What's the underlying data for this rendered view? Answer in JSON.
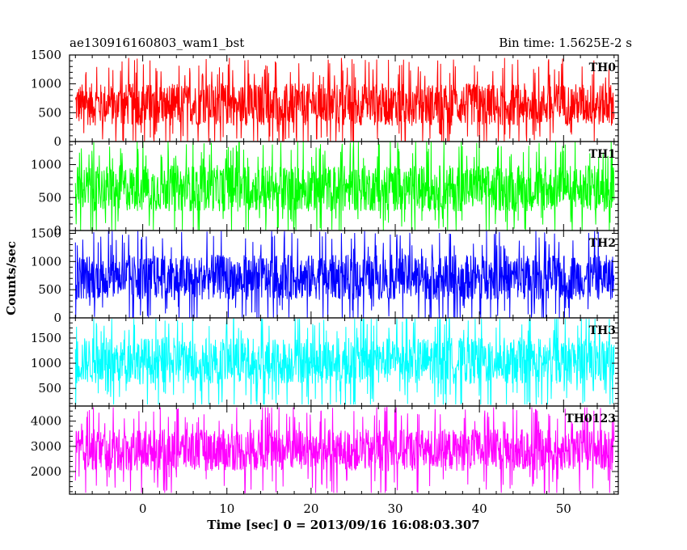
{
  "header": {
    "title": "ae130916160803_wam1_bst",
    "bin_time": "Bin time: 1.5625E-2 s"
  },
  "axes": {
    "xlabel": "Time [sec] 0 = 2013/09/16 16:08:03.307",
    "ylabel": "Counts/sec"
  },
  "chart_data": [
    {
      "type": "line",
      "name": "TH0",
      "color": "#ff0000",
      "xlim": [
        -8.7,
        56.5
      ],
      "ylim": [
        0,
        1500
      ],
      "yticks": [
        0,
        500,
        1000,
        1500
      ],
      "xticks": [
        0,
        10,
        20,
        30,
        40,
        50
      ],
      "x_range": [
        -8,
        56
      ],
      "baseline": 640,
      "spread": 230,
      "high": 1450,
      "low": 0
    },
    {
      "type": "line",
      "name": "TH1",
      "color": "#00ff00",
      "xlim": [
        -8.7,
        56.5
      ],
      "ylim": [
        0,
        1350
      ],
      "yticks": [
        0,
        500,
        1000
      ],
      "xticks": [
        0,
        10,
        20,
        30,
        40,
        50
      ],
      "x_range": [
        -8,
        56
      ],
      "baseline": 640,
      "spread": 220,
      "high": 1350,
      "low": 0
    },
    {
      "type": "line",
      "name": "TH2",
      "color": "#0000ff",
      "xlim": [
        -8.7,
        56.5
      ],
      "ylim": [
        0,
        1550
      ],
      "yticks": [
        0,
        500,
        1000,
        1500
      ],
      "xticks": [
        0,
        10,
        20,
        30,
        40,
        50
      ],
      "x_range": [
        -8,
        56
      ],
      "baseline": 720,
      "spread": 250,
      "high": 1540,
      "low": 0
    },
    {
      "type": "line",
      "name": "TH3",
      "color": "#00ffff",
      "xlim": [
        -8.7,
        56.5
      ],
      "ylim": [
        150,
        1900
      ],
      "yticks": [
        500,
        1000,
        1500
      ],
      "xticks": [
        0,
        10,
        20,
        30,
        40,
        50
      ],
      "x_range": [
        -8,
        56
      ],
      "baseline": 1050,
      "spread": 290,
      "high": 1880,
      "low": 180
    },
    {
      "type": "line",
      "name": "TH0123",
      "color": "#ff00ff",
      "xlim": [
        -8.7,
        56.5
      ],
      "ylim": [
        1100,
        4600
      ],
      "yticks": [
        2000,
        3000,
        4000
      ],
      "xticks": [
        0,
        10,
        20,
        30,
        40,
        50
      ],
      "x_range": [
        -8,
        56
      ],
      "baseline": 2850,
      "spread": 520,
      "high": 4550,
      "low": 1150
    }
  ]
}
